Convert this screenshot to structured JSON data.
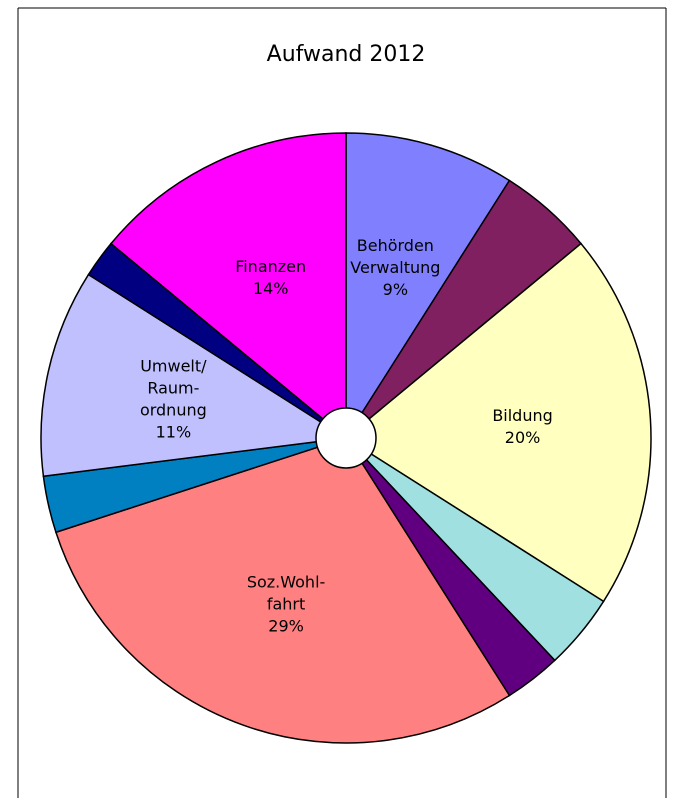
{
  "chart_data": {
    "type": "pie",
    "title": "Aufwand 2012",
    "categories": [
      [
        "Behörden",
        "Verwaltung"
      ],
      null,
      [
        "Bildung"
      ],
      null,
      null,
      [
        "Soz.Wohl-",
        "fahrt"
      ],
      null,
      [
        "Umwelt/",
        "Raum-",
        "ordnung"
      ],
      null,
      [
        "Finanzen"
      ]
    ],
    "values": [
      9,
      5,
      20,
      4,
      3,
      29,
      3,
      11,
      2,
      14
    ],
    "value_labels": [
      "9%",
      null,
      "20%",
      null,
      null,
      "29%",
      null,
      "11%",
      null,
      "14%"
    ],
    "colors": [
      "#8080ff",
      "#802060",
      "#ffffc0",
      "#a0e0e0",
      "#600080",
      "#ff8080",
      "#0080c0",
      "#c0c0ff",
      "#000080",
      "#ff00ff"
    ]
  }
}
